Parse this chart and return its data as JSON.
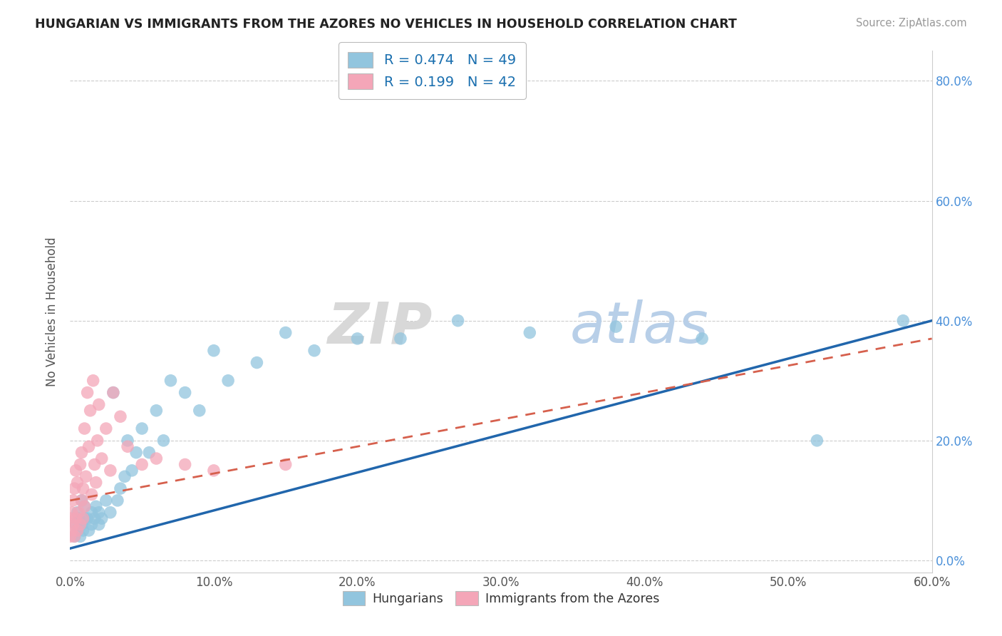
{
  "title": "HUNGARIAN VS IMMIGRANTS FROM THE AZORES NO VEHICLES IN HOUSEHOLD CORRELATION CHART",
  "source": "Source: ZipAtlas.com",
  "ylabel": "No Vehicles in Household",
  "xlim": [
    0.0,
    0.6
  ],
  "ylim": [
    -0.02,
    0.85
  ],
  "legend1_R": "0.474",
  "legend1_N": "49",
  "legend2_R": "0.199",
  "legend2_N": "42",
  "blue_color": "#92C5DE",
  "pink_color": "#F4A6B8",
  "trendline_blue": "#2166AC",
  "trendline_pink": "#D6604D",
  "watermark_zip": "ZIP",
  "watermark_atlas": "atlas",
  "hungarian_x": [
    0.003,
    0.004,
    0.005,
    0.005,
    0.006,
    0.007,
    0.008,
    0.008,
    0.009,
    0.01,
    0.01,
    0.012,
    0.013,
    0.015,
    0.015,
    0.017,
    0.018,
    0.02,
    0.02,
    0.022,
    0.025,
    0.028,
    0.03,
    0.033,
    0.035,
    0.038,
    0.04,
    0.043,
    0.046,
    0.05,
    0.055,
    0.06,
    0.065,
    0.07,
    0.08,
    0.09,
    0.1,
    0.11,
    0.13,
    0.15,
    0.17,
    0.2,
    0.23,
    0.27,
    0.32,
    0.38,
    0.44,
    0.52,
    0.58
  ],
  "hungarian_y": [
    0.04,
    0.06,
    0.05,
    0.08,
    0.07,
    0.04,
    0.06,
    0.1,
    0.05,
    0.07,
    0.09,
    0.07,
    0.05,
    0.08,
    0.06,
    0.07,
    0.09,
    0.06,
    0.08,
    0.07,
    0.1,
    0.08,
    0.28,
    0.1,
    0.12,
    0.14,
    0.2,
    0.15,
    0.18,
    0.22,
    0.18,
    0.25,
    0.2,
    0.3,
    0.28,
    0.25,
    0.35,
    0.3,
    0.33,
    0.38,
    0.35,
    0.37,
    0.37,
    0.4,
    0.38,
    0.39,
    0.37,
    0.2,
    0.4
  ],
  "azores_x": [
    0.0,
    0.0,
    0.001,
    0.001,
    0.002,
    0.002,
    0.003,
    0.003,
    0.004,
    0.004,
    0.005,
    0.005,
    0.006,
    0.007,
    0.007,
    0.008,
    0.008,
    0.009,
    0.009,
    0.01,
    0.01,
    0.011,
    0.012,
    0.013,
    0.014,
    0.015,
    0.016,
    0.017,
    0.018,
    0.019,
    0.02,
    0.022,
    0.025,
    0.028,
    0.03,
    0.035,
    0.04,
    0.05,
    0.06,
    0.08,
    0.1,
    0.15
  ],
  "azores_y": [
    0.04,
    0.07,
    0.05,
    0.08,
    0.06,
    0.1,
    0.04,
    0.12,
    0.07,
    0.15,
    0.05,
    0.13,
    0.08,
    0.06,
    0.16,
    0.1,
    0.18,
    0.07,
    0.12,
    0.09,
    0.22,
    0.14,
    0.28,
    0.19,
    0.25,
    0.11,
    0.3,
    0.16,
    0.13,
    0.2,
    0.26,
    0.17,
    0.22,
    0.15,
    0.28,
    0.24,
    0.19,
    0.16,
    0.17,
    0.16,
    0.15,
    0.16
  ],
  "trendline_blue_m": 0.63,
  "trendline_blue_b": 0.02,
  "trendline_pink_m": 0.35,
  "trendline_pink_b": 0.1
}
